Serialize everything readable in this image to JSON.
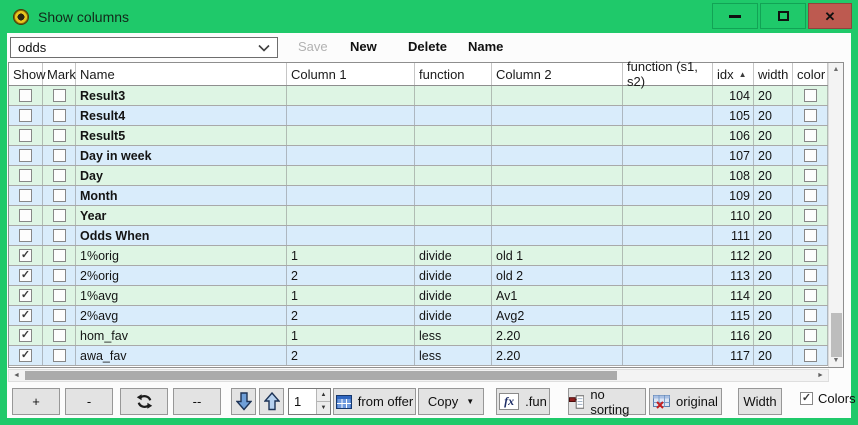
{
  "window": {
    "title": "Show columns"
  },
  "icons": {
    "checkmark": "✓",
    "sort_asc": "▲",
    "spin_up": "▲",
    "spin_down": "▼",
    "scroll_up": "▲",
    "scroll_down": "▼",
    "scroll_left": "◄",
    "scroll_right": "►",
    "dropdown": "▼",
    "close": "✕",
    "fx": "fx"
  },
  "toolbar_top": {
    "combo_value": "odds",
    "save": "Save",
    "new": "New",
    "delete": "Delete",
    "name": "Name"
  },
  "table": {
    "headers": [
      "Show",
      "Mark",
      "Name",
      "Column 1",
      "function",
      "Column 2",
      "function (s1, s2)",
      "idx",
      "width",
      "color"
    ],
    "sorted_by": "idx",
    "rows": [
      {
        "show": false,
        "mark": false,
        "name": "Result3",
        "bold": true,
        "col1": "",
        "fn": "",
        "col2": "",
        "fns": "",
        "idx": "104",
        "width": "20",
        "color": false
      },
      {
        "show": false,
        "mark": false,
        "name": "Result4",
        "bold": true,
        "col1": "",
        "fn": "",
        "col2": "",
        "fns": "",
        "idx": "105",
        "width": "20",
        "color": false
      },
      {
        "show": false,
        "mark": false,
        "name": "Result5",
        "bold": true,
        "col1": "",
        "fn": "",
        "col2": "",
        "fns": "",
        "idx": "106",
        "width": "20",
        "color": false
      },
      {
        "show": false,
        "mark": false,
        "name": "Day in week",
        "bold": true,
        "col1": "",
        "fn": "",
        "col2": "",
        "fns": "",
        "idx": "107",
        "width": "20",
        "color": false
      },
      {
        "show": false,
        "mark": false,
        "name": "Day",
        "bold": true,
        "col1": "",
        "fn": "",
        "col2": "",
        "fns": "",
        "idx": "108",
        "width": "20",
        "color": false
      },
      {
        "show": false,
        "mark": false,
        "name": "Month",
        "bold": true,
        "col1": "",
        "fn": "",
        "col2": "",
        "fns": "",
        "idx": "109",
        "width": "20",
        "color": false
      },
      {
        "show": false,
        "mark": false,
        "name": "Year",
        "bold": true,
        "col1": "",
        "fn": "",
        "col2": "",
        "fns": "",
        "idx": "110",
        "width": "20",
        "color": false
      },
      {
        "show": false,
        "mark": false,
        "name": "Odds When",
        "bold": true,
        "col1": "",
        "fn": "",
        "col2": "",
        "fns": "",
        "idx": "111",
        "width": "20",
        "color": false
      },
      {
        "show": true,
        "mark": false,
        "name": "1%orig",
        "bold": false,
        "col1": "1",
        "fn": "divide",
        "col2": "old 1",
        "fns": "",
        "idx": "112",
        "width": "20",
        "color": false
      },
      {
        "show": true,
        "mark": false,
        "name": "2%orig",
        "bold": false,
        "col1": "2",
        "fn": "divide",
        "col2": "old 2",
        "fns": "",
        "idx": "113",
        "width": "20",
        "color": false
      },
      {
        "show": true,
        "mark": false,
        "name": "1%avg",
        "bold": false,
        "col1": "1",
        "fn": "divide",
        "col2": "Av1",
        "fns": "",
        "idx": "114",
        "width": "20",
        "color": false
      },
      {
        "show": true,
        "mark": false,
        "name": "2%avg",
        "bold": false,
        "col1": "2",
        "fn": "divide",
        "col2": "Avg2",
        "fns": "",
        "idx": "115",
        "width": "20",
        "color": false
      },
      {
        "show": true,
        "mark": false,
        "name": "hom_fav",
        "bold": false,
        "col1": "1",
        "fn": "less",
        "col2": "2.20",
        "fns": "",
        "idx": "116",
        "width": "20",
        "color": false
      },
      {
        "show": true,
        "mark": false,
        "name": "awa_fav",
        "bold": false,
        "col1": "2",
        "fn": "less",
        "col2": "2.20",
        "fns": "",
        "idx": "117",
        "width": "20",
        "color": false
      }
    ]
  },
  "toolbar_bottom": {
    "plus": "+",
    "minus": "-",
    "double_minus": "--",
    "spinner_value": "1",
    "from_offer": "from offer",
    "copy": "Copy",
    "fun": ".fun",
    "no_sorting": "no sorting",
    "original": "original",
    "width": "Width",
    "colors": "Colors",
    "colors_checked": true
  }
}
